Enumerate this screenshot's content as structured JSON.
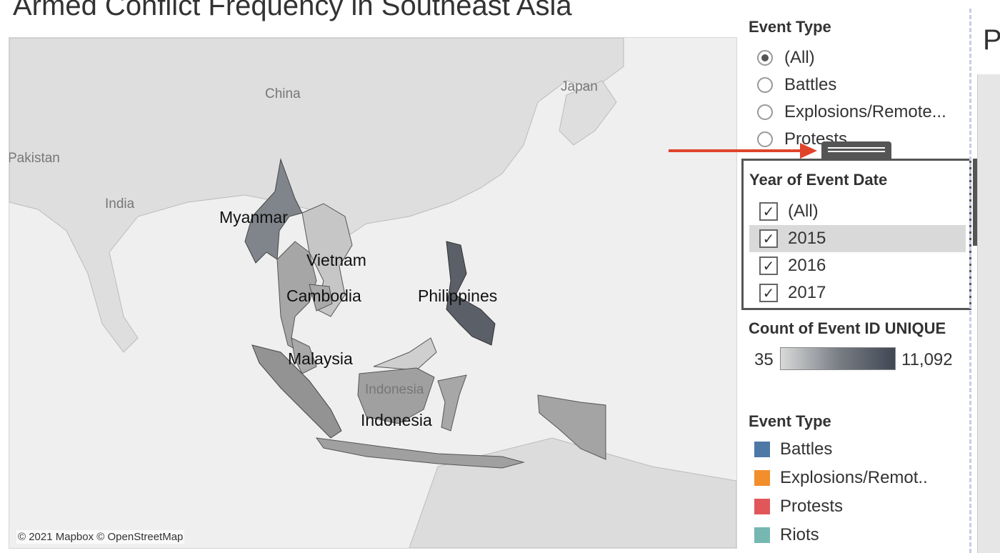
{
  "title": "Armed Conflict Frequency in Southeast Asia",
  "map": {
    "attribution": "© 2021 Mapbox © OpenStreetMap",
    "background_labels": {
      "china": "China",
      "japan": "Japan",
      "pakistan": "Pakistan",
      "india": "India"
    },
    "country_labels": {
      "myanmar": "Myanmar",
      "vietnam": "Vietnam",
      "cambodia": "Cambodia",
      "philippines": "Philippines",
      "malaysia": "Malaysia",
      "indonesia": "Indonesia",
      "indonesia_faint": "Indonesia"
    }
  },
  "event_type_filter": {
    "title": "Event Type",
    "options": [
      "(All)",
      "Battles",
      "Explosions/Remote...",
      "Protests"
    ],
    "selected": "(All)"
  },
  "year_filter": {
    "title": "Year of Event Date",
    "options": [
      "(All)",
      "2015",
      "2016",
      "2017"
    ],
    "checked": [
      true,
      true,
      true,
      true
    ],
    "highlighted": "2015"
  },
  "color_legend": {
    "title": "Count of Event ID UNIQUE",
    "min": "35",
    "max": "11,092"
  },
  "event_type_legend": {
    "title": "Event Type",
    "items": [
      {
        "label": "Battles",
        "color": "#4e79a7"
      },
      {
        "label": "Explosions/Remot..",
        "color": "#f28e2b"
      },
      {
        "label": "Protests",
        "color": "#e15759"
      },
      {
        "label": "Riots",
        "color": "#76b7b2"
      }
    ]
  },
  "right_panel": {
    "title_fragment": "P"
  }
}
